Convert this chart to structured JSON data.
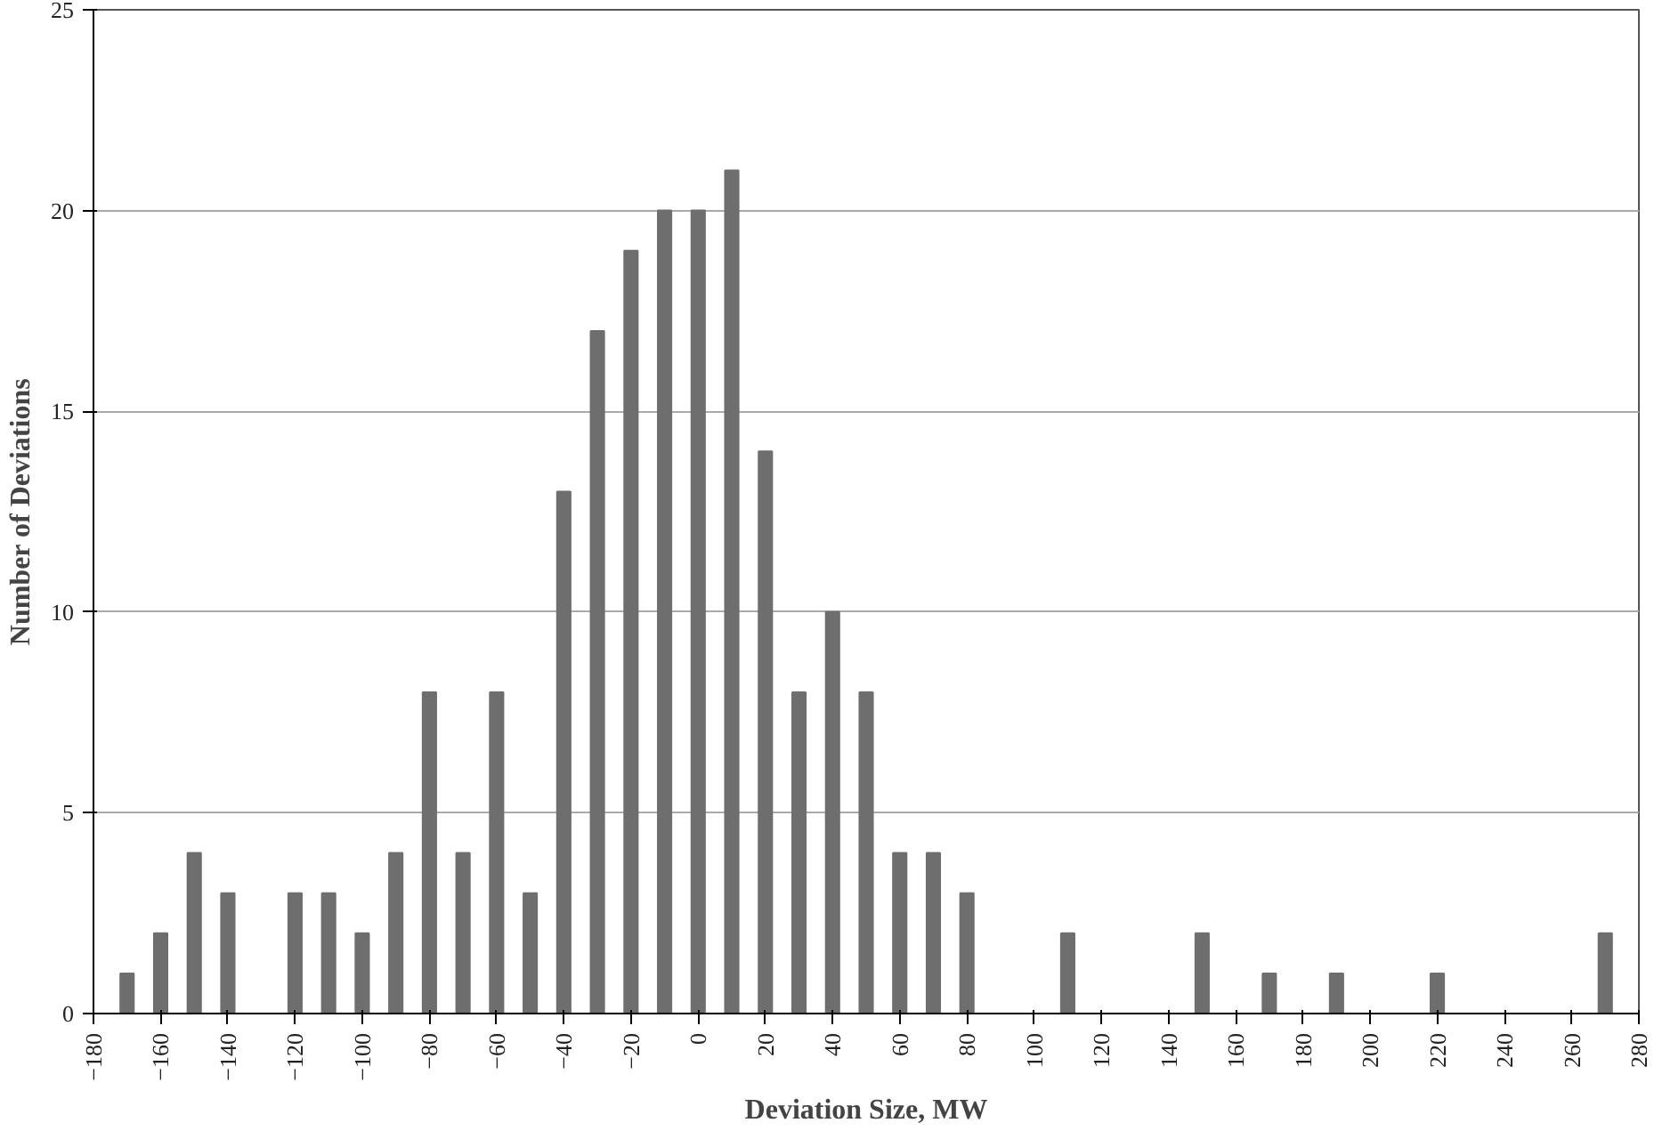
{
  "chart_data": {
    "type": "bar",
    "xlabel": "Deviation Size, MW",
    "ylabel": "Number of Deviations",
    "x": [
      -170,
      -160,
      -150,
      -140,
      -120,
      -110,
      -100,
      -90,
      -80,
      -70,
      -60,
      -50,
      -40,
      -30,
      -20,
      -10,
      0,
      10,
      20,
      30,
      40,
      50,
      60,
      70,
      80,
      110,
      150,
      170,
      190,
      220,
      270
    ],
    "values": [
      1,
      2,
      4,
      3,
      3,
      3,
      2,
      4,
      8,
      4,
      8,
      3,
      13,
      17,
      19,
      20,
      20,
      21,
      14,
      8,
      10,
      8,
      4,
      4,
      3,
      2,
      2,
      1,
      1,
      1,
      2
    ],
    "color": "#6e6e6e",
    "xlim": [
      -180,
      280
    ],
    "xticks": [
      -180,
      -160,
      -140,
      -120,
      -100,
      -80,
      -60,
      -40,
      -20,
      0,
      20,
      40,
      60,
      80,
      100,
      120,
      140,
      160,
      180,
      200,
      220,
      240,
      260,
      280
    ],
    "ylim": [
      0,
      25
    ],
    "yticks": [
      0,
      5,
      10,
      15,
      20,
      25
    ],
    "grid": "y"
  }
}
